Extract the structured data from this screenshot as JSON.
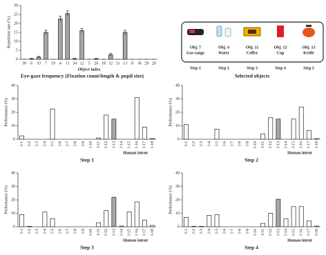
{
  "chart_data": [
    {
      "type": "bar",
      "caption": "Eye-gaze frequency (Fixation count/length & pupil size)",
      "y_label": "Repetition rate (%)",
      "x_label": "Object index",
      "categories": [
        "30",
        "6",
        "33",
        "7",
        "19",
        "4",
        "11",
        "34",
        "12",
        "5",
        "26",
        "18",
        "32",
        "31",
        "13",
        "8",
        "36",
        "29",
        "20"
      ],
      "values": [
        0,
        0.3,
        1.2,
        15,
        0,
        22.5,
        25.5,
        0.3,
        16,
        0,
        0.3,
        0,
        2.5,
        0,
        15,
        0,
        0,
        0,
        0
      ],
      "errors": [
        0,
        0.2,
        0.4,
        1.2,
        0,
        1.5,
        1.5,
        0.2,
        1.2,
        0,
        0.2,
        0,
        0.8,
        0,
        1.2,
        0,
        0,
        0,
        0
      ],
      "color": "#a6a6a6",
      "ylim": [
        0,
        30
      ],
      "yticks": [
        0,
        5,
        10,
        15,
        20,
        25,
        30
      ]
    },
    {
      "type": "bar",
      "caption": "Step 1",
      "y_label": "Performance (%)",
      "x_label": "Human intent",
      "categories": [
        "I-1",
        "I-2",
        "I-3",
        "I-4",
        "I-5",
        "I-6",
        "I-7",
        "I-8",
        "I-9",
        "I-10",
        "I-11",
        "I-12",
        "I-13",
        "I-14",
        "I-15",
        "I-16",
        "I-17",
        "I-18"
      ],
      "values": [
        2.5,
        0,
        0,
        0,
        22.5,
        0,
        0,
        0,
        0,
        0,
        1,
        18,
        15,
        0,
        0,
        31,
        9,
        0.5
      ],
      "colors": [
        "#ffffff",
        "#ffffff",
        "#ffffff",
        "#ffffff",
        "#ffffff",
        "#ffffff",
        "#ffffff",
        "#ffffff",
        "#ffffff",
        "#ffffff",
        "#ffffff",
        "#ffffff",
        "#a6a6a6",
        "#ffffff",
        "#ffffff",
        "#ffffff",
        "#ffffff",
        "#ffffff"
      ],
      "ylim": [
        0,
        40
      ],
      "yticks": [
        0,
        10,
        20,
        30,
        40
      ]
    },
    {
      "type": "bar",
      "caption": "Step 2",
      "y_label": "Performance (%)",
      "x_label": "Human intent",
      "categories": [
        "I-1",
        "I-2",
        "I-3",
        "I-4",
        "I-5",
        "I-6",
        "I-7",
        "I-8",
        "I-9",
        "I-10",
        "I-11",
        "I-12",
        "I-13",
        "I-14",
        "I-15",
        "I-16",
        "I-17",
        "I-18"
      ],
      "values": [
        11,
        0,
        0,
        0,
        7.5,
        0,
        0,
        0,
        0,
        0,
        4,
        16,
        15,
        0,
        15,
        24,
        6.5,
        0.5
      ],
      "colors": [
        "#ffffff",
        "#ffffff",
        "#ffffff",
        "#ffffff",
        "#ffffff",
        "#ffffff",
        "#ffffff",
        "#ffffff",
        "#ffffff",
        "#ffffff",
        "#ffffff",
        "#ffffff",
        "#a6a6a6",
        "#ffffff",
        "#ffffff",
        "#ffffff",
        "#ffffff",
        "#ffffff"
      ],
      "ylim": [
        0,
        40
      ],
      "yticks": [
        0,
        10,
        20,
        30,
        40
      ]
    },
    {
      "type": "bar",
      "caption": "Step 3",
      "y_label": "Performance (%)",
      "x_label": "Human intent",
      "categories": [
        "I-1",
        "I-2",
        "I-3",
        "I-4",
        "I-5",
        "I-6",
        "I-7",
        "I-8",
        "I-9",
        "I-10",
        "I-11",
        "I-12",
        "I-13",
        "I-14",
        "I-15",
        "I-16",
        "I-17",
        "I-18"
      ],
      "values": [
        9,
        0.3,
        0,
        11,
        6,
        0,
        0,
        0,
        0,
        0,
        3,
        12,
        22,
        0.5,
        11,
        18.5,
        5,
        1
      ],
      "colors": [
        "#ffffff",
        "#ffffff",
        "#ffffff",
        "#ffffff",
        "#ffffff",
        "#ffffff",
        "#ffffff",
        "#ffffff",
        "#ffffff",
        "#ffffff",
        "#ffffff",
        "#ffffff",
        "#a6a6a6",
        "#ffffff",
        "#ffffff",
        "#ffffff",
        "#ffffff",
        "#ffffff"
      ],
      "ylim": [
        0,
        40
      ],
      "yticks": [
        0,
        10,
        20,
        30,
        40
      ]
    },
    {
      "type": "bar",
      "caption": "Step 4",
      "y_label": "Performance (%)",
      "x_label": "Human intent",
      "categories": [
        "I-1",
        "I-2",
        "I-3",
        "I-4",
        "I-5",
        "I-6",
        "I-7",
        "I-8",
        "I-9",
        "I-10",
        "I-11",
        "I-12",
        "I-13",
        "I-14",
        "I-15",
        "I-16",
        "I-17",
        "I-18"
      ],
      "values": [
        7,
        0.3,
        0.3,
        8.5,
        9,
        0,
        0,
        0,
        0,
        0,
        2.5,
        10,
        20.5,
        6,
        15,
        15,
        4.5,
        0.5
      ],
      "colors": [
        "#ffffff",
        "#ffffff",
        "#ffffff",
        "#ffffff",
        "#ffffff",
        "#ffffff",
        "#ffffff",
        "#ffffff",
        "#ffffff",
        "#ffffff",
        "#ffffff",
        "#ffffff",
        "#a6a6a6",
        "#ffffff",
        "#ffffff",
        "#ffffff",
        "#ffffff",
        "#ffffff"
      ],
      "ylim": [
        0,
        40
      ],
      "yticks": [
        0,
        10,
        20,
        30,
        40
      ]
    }
  ],
  "objects_panel": {
    "caption": "Selected objects",
    "items": [
      {
        "step": "Step 1",
        "obj": "Obj. 7",
        "name": "Gas range"
      },
      {
        "step": "Step 2",
        "obj": "Obj. 4",
        "name": "Water"
      },
      {
        "step": "Step 3",
        "obj": "Obj. 11",
        "name": "Coffee"
      },
      {
        "step": "Step 4",
        "obj": "Obj. 12",
        "name": "Cup"
      },
      {
        "step": "Step 5",
        "obj": "Obj. 13",
        "name": "Kettle"
      }
    ]
  }
}
